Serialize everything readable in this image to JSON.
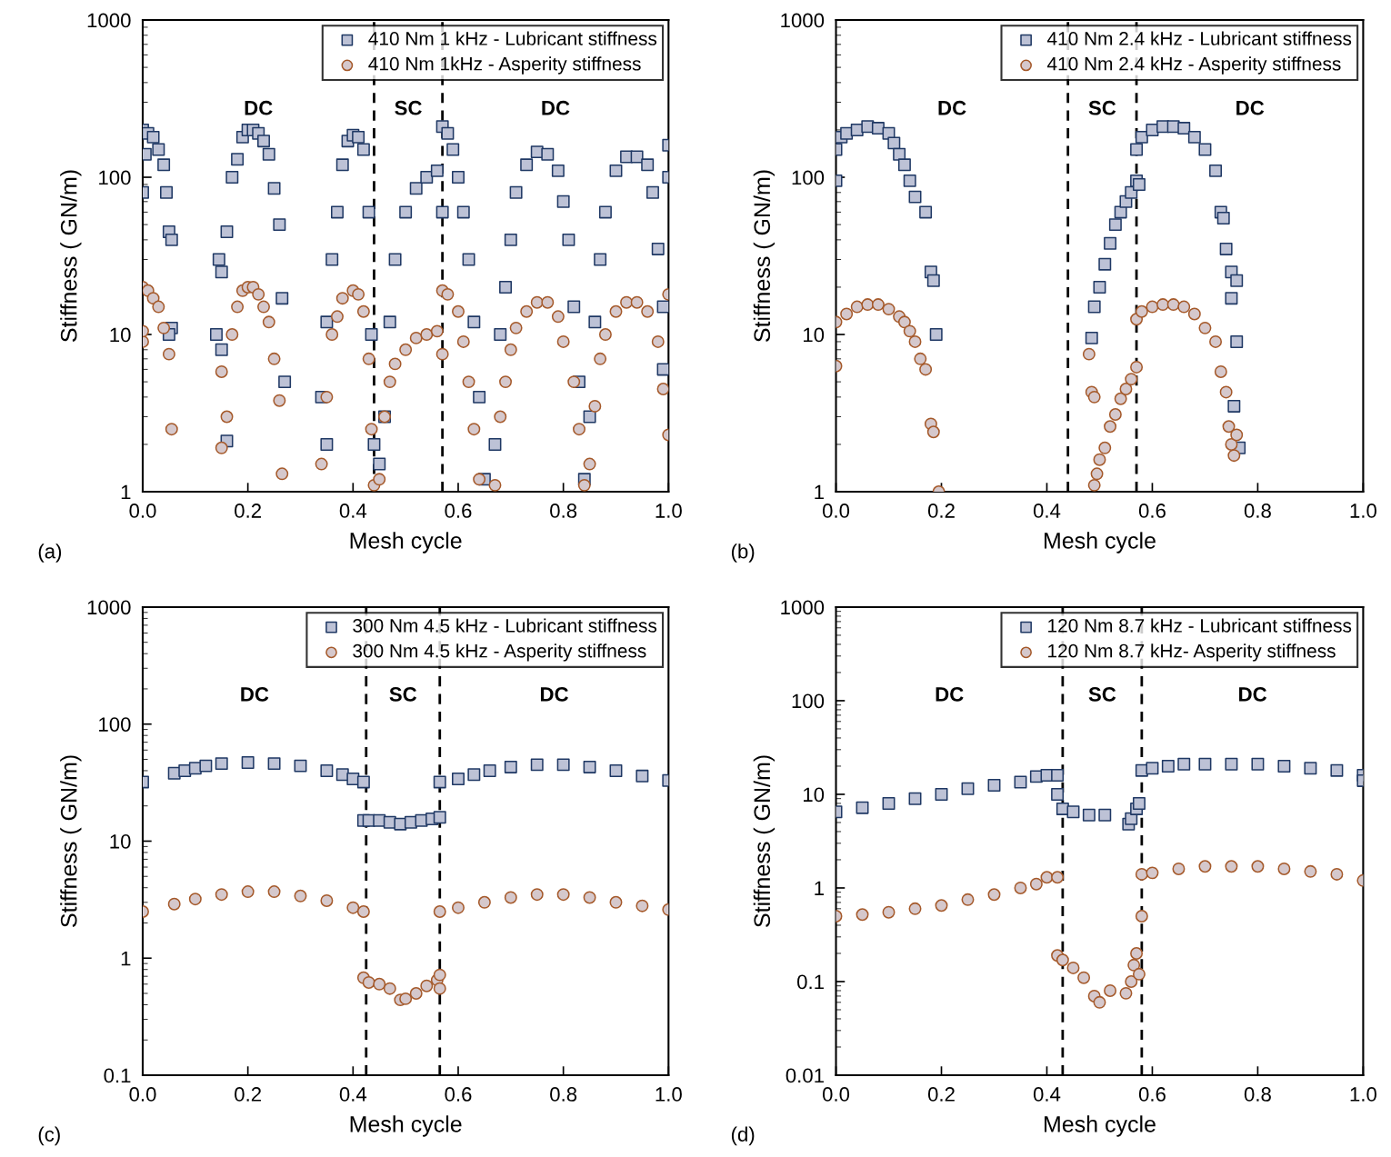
{
  "chart_data": [
    {
      "type": "scatter",
      "xlabel": "Mesh cycle",
      "ylabel": "Stiffness ( GN/m)",
      "log": "y",
      "xlim": [
        0,
        1
      ],
      "ylim": [
        1,
        1000
      ],
      "xticks": [
        {
          "value": 0,
          "label": "0.0"
        },
        {
          "value": 0.2,
          "label": "0.2"
        },
        {
          "value": 0.4,
          "label": "0.4"
        },
        {
          "value": 0.6,
          "label": "0.6"
        },
        {
          "value": 0.8,
          "label": "0.8"
        },
        {
          "value": 1,
          "label": "1.0"
        }
      ],
      "yticks": [
        1,
        10,
        100,
        1000
      ],
      "grid": false,
      "legend": "top right",
      "ref_lines": [
        {
          "axis": "x",
          "value": 0.44,
          "color": "#000000",
          "line_style": "dashed"
        },
        {
          "axis": "x",
          "value": 0.57,
          "color": "#000000",
          "line_style": "dashed"
        }
      ],
      "annotations": [
        "DC",
        "SC",
        "DC",
        "(a)"
      ],
      "series": [
        {
          "name": "410 Nm 1 kHz - Lubricant stiffness",
          "color": "#1f3864",
          "marker": "square",
          "x": [
            0,
            0.005,
            0.01,
            0.02,
            0.03,
            0.04,
            0.045,
            0.05,
            0.055,
            0.055,
            0.05,
            0.0,
            0.14,
            0.145,
            0.15,
            0.16,
            0.17,
            0.18,
            0.19,
            0.2,
            0.21,
            0.22,
            0.23,
            0.24,
            0.25,
            0.26,
            0.265,
            0.27,
            0.16,
            0.15,
            0.34,
            0.35,
            0.36,
            0.37,
            0.38,
            0.39,
            0.4,
            0.41,
            0.42,
            0.43,
            0.435,
            0.44,
            0.35,
            0.45,
            0.46,
            0.47,
            0.48,
            0.5,
            0.52,
            0.54,
            0.56,
            0.57,
            0.57,
            0.58,
            0.59,
            0.6,
            0.61,
            0.62,
            0.63,
            0.64,
            0.65,
            0.67,
            0.68,
            0.69,
            0.7,
            0.71,
            0.73,
            0.75,
            0.77,
            0.79,
            0.8,
            0.81,
            0.82,
            0.83,
            0.84,
            0.85,
            0.86,
            0.87,
            0.88,
            0.9,
            0.92,
            0.94,
            0.96,
            0.97,
            0.98,
            0.99,
            1.0,
            1.0,
            0.99
          ],
          "values": [
            200,
            140,
            190,
            180,
            150,
            120,
            80,
            45,
            40,
            11,
            10,
            80,
            10,
            30,
            25,
            45,
            100,
            130,
            180,
            200,
            200,
            190,
            170,
            140,
            85,
            50,
            17,
            5,
            2.1,
            8,
            4,
            12,
            30,
            60,
            120,
            170,
            185,
            180,
            150,
            60,
            10,
            2,
            2,
            1.5,
            3,
            12,
            30,
            60,
            85,
            100,
            110,
            60,
            210,
            190,
            150,
            100,
            60,
            30,
            12,
            4,
            1.2,
            2,
            10,
            20,
            40,
            80,
            120,
            145,
            140,
            110,
            70,
            40,
            15,
            5,
            1.2,
            3,
            12,
            30,
            60,
            110,
            135,
            135,
            120,
            80,
            35,
            15,
            160,
            100,
            6
          ]
        },
        {
          "name": "410 Nm 1kHz - Asperity stiffness",
          "color": "#a5592a",
          "marker": "circle",
          "x": [
            0,
            0.01,
            0.02,
            0.03,
            0.04,
            0.05,
            0.055,
            0.0,
            0.0,
            0.15,
            0.15,
            0.16,
            0.17,
            0.18,
            0.19,
            0.2,
            0.21,
            0.22,
            0.23,
            0.24,
            0.25,
            0.26,
            0.265,
            0.34,
            0.35,
            0.36,
            0.37,
            0.38,
            0.4,
            0.41,
            0.42,
            0.43,
            0.435,
            0.44,
            0.45,
            0.46,
            0.47,
            0.48,
            0.5,
            0.52,
            0.54,
            0.56,
            0.57,
            0.57,
            0.58,
            0.6,
            0.61,
            0.62,
            0.63,
            0.64,
            0.67,
            0.68,
            0.69,
            0.7,
            0.71,
            0.73,
            0.75,
            0.77,
            0.79,
            0.8,
            0.82,
            0.83,
            0.84,
            0.85,
            0.86,
            0.87,
            0.88,
            0.9,
            0.92,
            0.94,
            0.96,
            0.98,
            0.99,
            1.0,
            1.0
          ],
          "values": [
            20,
            19,
            17,
            15,
            11,
            7.5,
            2.5,
            9,
            10.5,
            1.9,
            5.8,
            3,
            10,
            15,
            19,
            20,
            20,
            18,
            15,
            12,
            7,
            3.8,
            1.3,
            1.5,
            4,
            10,
            13,
            17,
            19,
            18,
            14,
            7,
            2.5,
            1.1,
            1.2,
            3,
            5,
            6.5,
            8,
            9.5,
            10,
            10.5,
            7.5,
            19,
            18,
            14,
            9,
            5,
            2.5,
            1.2,
            1.1,
            3,
            5,
            8,
            11,
            14,
            16,
            16,
            13,
            9,
            5,
            2.5,
            1.1,
            1.5,
            3.5,
            7,
            10,
            14,
            16,
            16,
            14,
            9,
            4.5,
            18,
            2.3
          ]
        }
      ]
    },
    {
      "type": "scatter",
      "xlabel": "Mesh cycle",
      "ylabel": "Stiffness ( GN/m)",
      "log": "y",
      "xlim": [
        0,
        1
      ],
      "ylim": [
        1,
        1000
      ],
      "xticks": [
        {
          "value": 0,
          "label": "0.0"
        },
        {
          "value": 0.2,
          "label": "0.2"
        },
        {
          "value": 0.4,
          "label": "0.4"
        },
        {
          "value": 0.6,
          "label": "0.6"
        },
        {
          "value": 0.8,
          "label": "0.8"
        },
        {
          "value": 1,
          "label": "1.0"
        }
      ],
      "yticks": [
        1,
        10,
        100,
        1000
      ],
      "grid": false,
      "legend": "top right",
      "ref_lines": [
        {
          "axis": "x",
          "value": 0.44,
          "color": "#000000",
          "line_style": "dashed"
        },
        {
          "axis": "x",
          "value": 0.57,
          "color": "#000000",
          "line_style": "dashed"
        }
      ],
      "annotations": [
        "DC",
        "SC",
        "DC",
        "(b)"
      ],
      "series": [
        {
          "name": "410 Nm 2.4 kHz - Lubricant stiffness",
          "color": "#1f3864",
          "marker": "square",
          "x": [
            0,
            0,
            0.01,
            0.02,
            0.04,
            0.06,
            0.08,
            0.1,
            0.11,
            0.12,
            0.13,
            0.14,
            0.15,
            0.17,
            0.18,
            0.185,
            0.19,
            0.485,
            0.49,
            0.5,
            0.51,
            0.52,
            0.53,
            0.54,
            0.55,
            0.56,
            0.57,
            0.575,
            0.57,
            0.58,
            0.6,
            0.62,
            0.64,
            0.66,
            0.68,
            0.7,
            0.72,
            0.73,
            0.735,
            0.74,
            0.75,
            0.75,
            0.76,
            0.755,
            0.765,
            0.76
          ],
          "values": [
            95,
            150,
            180,
            190,
            200,
            210,
            205,
            190,
            165,
            140,
            120,
            95,
            75,
            60,
            25,
            22,
            10,
            9.5,
            15,
            20,
            28,
            38,
            50,
            60,
            70,
            80,
            95,
            90,
            150,
            180,
            200,
            210,
            210,
            205,
            180,
            150,
            110,
            60,
            55,
            35,
            25,
            17,
            9,
            3.5,
            1.9,
            22
          ]
        },
        {
          "name": "410 Nm 2.4 kHz - Asperity stiffness",
          "color": "#a5592a",
          "marker": "circle",
          "x": [
            0,
            0,
            0.02,
            0.04,
            0.06,
            0.08,
            0.1,
            0.12,
            0.13,
            0.14,
            0.15,
            0.16,
            0.17,
            0.18,
            0.185,
            0.195,
            0.48,
            0.485,
            0.49,
            0.49,
            0.495,
            0.5,
            0.51,
            0.52,
            0.53,
            0.54,
            0.55,
            0.56,
            0.57,
            0.57,
            0.58,
            0.6,
            0.62,
            0.64,
            0.66,
            0.68,
            0.7,
            0.72,
            0.73,
            0.74,
            0.745,
            0.75,
            0.755,
            0.76
          ],
          "values": [
            6.3,
            12,
            13.5,
            15,
            15.5,
            15.5,
            14.5,
            13,
            12,
            10.5,
            9,
            7,
            6,
            2.7,
            2.4,
            1.0,
            7.5,
            4.3,
            4,
            1.1,
            1.3,
            1.6,
            1.9,
            2.6,
            3.1,
            3.9,
            4.5,
            5.2,
            6.2,
            12.5,
            14,
            15,
            15.5,
            15.5,
            15,
            13.5,
            11,
            9,
            5.8,
            4.3,
            2.6,
            2.0,
            1.7,
            2.3
          ]
        }
      ]
    },
    {
      "type": "scatter",
      "xlabel": "Mesh cycle",
      "ylabel": "Stiffness ( GN/m)",
      "log": "y",
      "xlim": [
        0,
        1
      ],
      "ylim": [
        0.1,
        1000
      ],
      "xticks": [
        {
          "value": 0,
          "label": "0.0"
        },
        {
          "value": 0.2,
          "label": "0.2"
        },
        {
          "value": 0.4,
          "label": "0.4"
        },
        {
          "value": 0.6,
          "label": "0.6"
        },
        {
          "value": 0.8,
          "label": "0.8"
        },
        {
          "value": 1,
          "label": "1.0"
        }
      ],
      "yticks": [
        0.1,
        1,
        10,
        100,
        1000
      ],
      "grid": false,
      "legend": "top right",
      "ref_lines": [
        {
          "axis": "x",
          "value": 0.425,
          "color": "#000000",
          "line_style": "dashed"
        },
        {
          "axis": "x",
          "value": 0.565,
          "color": "#000000",
          "line_style": "dashed"
        }
      ],
      "annotations": [
        "DC",
        "SC",
        "DC",
        "(c)"
      ],
      "series": [
        {
          "name": "300 Nm 4.5 kHz - Lubricant stiffness",
          "color": "#1f3864",
          "marker": "square",
          "x": [
            0,
            0.06,
            0.08,
            0.1,
            0.12,
            0.15,
            0.2,
            0.25,
            0.3,
            0.35,
            0.38,
            0.4,
            0.42,
            0.42,
            0.43,
            0.45,
            0.47,
            0.49,
            0.51,
            0.53,
            0.55,
            0.565,
            0.565,
            0.6,
            0.63,
            0.66,
            0.7,
            0.75,
            0.8,
            0.85,
            0.9,
            0.95,
            1.0
          ],
          "values": [
            32,
            38,
            40,
            42,
            44,
            46,
            47,
            46,
            44,
            40,
            37,
            34,
            32,
            15,
            15,
            15,
            14.5,
            14,
            14.5,
            15,
            15.5,
            16,
            32,
            34,
            37,
            40,
            43,
            45,
            45,
            43,
            40,
            36,
            33
          ]
        },
        {
          "name": "300 Nm 4.5 kHz - Asperity stiffness",
          "color": "#a5592a",
          "marker": "circle",
          "x": [
            0,
            0.06,
            0.1,
            0.15,
            0.2,
            0.25,
            0.3,
            0.35,
            0.4,
            0.42,
            0.42,
            0.43,
            0.45,
            0.47,
            0.49,
            0.5,
            0.52,
            0.54,
            0.56,
            0.565,
            0.565,
            0.565,
            0.6,
            0.65,
            0.7,
            0.75,
            0.8,
            0.85,
            0.9,
            0.95,
            1.0
          ],
          "values": [
            2.5,
            2.9,
            3.2,
            3.5,
            3.7,
            3.7,
            3.4,
            3.1,
            2.7,
            2.5,
            0.68,
            0.62,
            0.6,
            0.55,
            0.44,
            0.45,
            0.5,
            0.58,
            0.65,
            0.72,
            0.55,
            2.5,
            2.7,
            3.0,
            3.3,
            3.5,
            3.5,
            3.3,
            3.0,
            2.8,
            2.6
          ]
        }
      ]
    },
    {
      "type": "scatter",
      "xlabel": "Mesh cycle",
      "ylabel": "Stiffness ( GN/m)",
      "log": "y",
      "xlim": [
        0,
        1
      ],
      "ylim": [
        0.01,
        1000
      ],
      "xticks": [
        {
          "value": 0,
          "label": "0.0"
        },
        {
          "value": 0.2,
          "label": "0.2"
        },
        {
          "value": 0.4,
          "label": "0.4"
        },
        {
          "value": 0.6,
          "label": "0.6"
        },
        {
          "value": 0.8,
          "label": "0.8"
        },
        {
          "value": 1,
          "label": "1.0"
        }
      ],
      "yticks": [
        0.01,
        0.1,
        1,
        10,
        100,
        1000
      ],
      "grid": false,
      "legend": "top right",
      "ref_lines": [
        {
          "axis": "x",
          "value": 0.43,
          "color": "#000000",
          "line_style": "dashed"
        },
        {
          "axis": "x",
          "value": 0.58,
          "color": "#000000",
          "line_style": "dashed"
        }
      ],
      "annotations": [
        "DC",
        "SC",
        "DC",
        "(d)"
      ],
      "series": [
        {
          "name": "120 Nm 8.7 kHz - Lubricant stiffness",
          "color": "#1f3864",
          "marker": "square",
          "x": [
            0,
            0.05,
            0.1,
            0.15,
            0.2,
            0.25,
            0.3,
            0.35,
            0.38,
            0.4,
            0.42,
            0.42,
            0.43,
            0.45,
            0.48,
            0.51,
            0.555,
            0.56,
            0.57,
            0.575,
            0.58,
            0.6,
            0.63,
            0.66,
            0.7,
            0.75,
            0.8,
            0.85,
            0.9,
            0.95,
            1.0,
            1.0
          ],
          "values": [
            6.5,
            7.2,
            8,
            9,
            10,
            11.5,
            12.5,
            13.5,
            15.5,
            16,
            16,
            10,
            7,
            6.5,
            6,
            6,
            4.8,
            5.5,
            7,
            8,
            18,
            19,
            20,
            21,
            21,
            21,
            21,
            20,
            19,
            18,
            16,
            14
          ]
        },
        {
          "name": "120 Nm 8.7 kHz- Asperity stiffness",
          "color": "#a5592a",
          "marker": "circle",
          "x": [
            0,
            0.05,
            0.1,
            0.15,
            0.2,
            0.25,
            0.3,
            0.35,
            0.38,
            0.4,
            0.42,
            0.42,
            0.43,
            0.45,
            0.47,
            0.49,
            0.5,
            0.52,
            0.55,
            0.56,
            0.565,
            0.57,
            0.575,
            0.58,
            0.58,
            0.6,
            0.65,
            0.7,
            0.75,
            0.8,
            0.85,
            0.9,
            0.95,
            1.0
          ],
          "values": [
            0.5,
            0.52,
            0.55,
            0.6,
            0.65,
            0.75,
            0.85,
            1.0,
            1.1,
            1.3,
            1.3,
            0.19,
            0.17,
            0.14,
            0.11,
            0.07,
            0.06,
            0.08,
            0.075,
            0.1,
            0.15,
            0.2,
            0.12,
            0.5,
            1.4,
            1.45,
            1.6,
            1.7,
            1.7,
            1.7,
            1.6,
            1.5,
            1.4,
            1.2
          ]
        }
      ]
    }
  ]
}
